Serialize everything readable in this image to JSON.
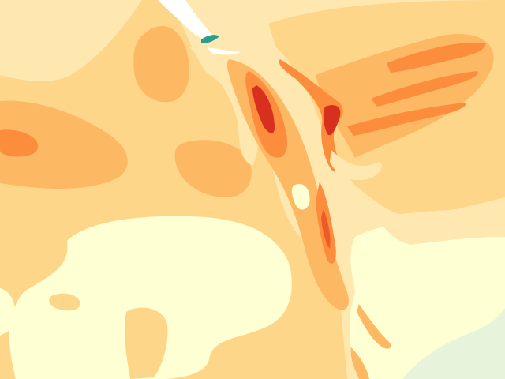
{
  "map": {
    "type": "filled-contour",
    "palette": {
      "level_0": "#ffffd4",
      "level_1": "#fee8b0",
      "level_2": "#fed68a",
      "level_3": "#fdb863",
      "level_4": "#fb8d3d",
      "level_5": "#ee5a2a",
      "level_6": "#d7301f",
      "water": "#e8f3dc",
      "highlight": "#ffffff",
      "accent_teal": "#2a9d8f"
    }
  }
}
